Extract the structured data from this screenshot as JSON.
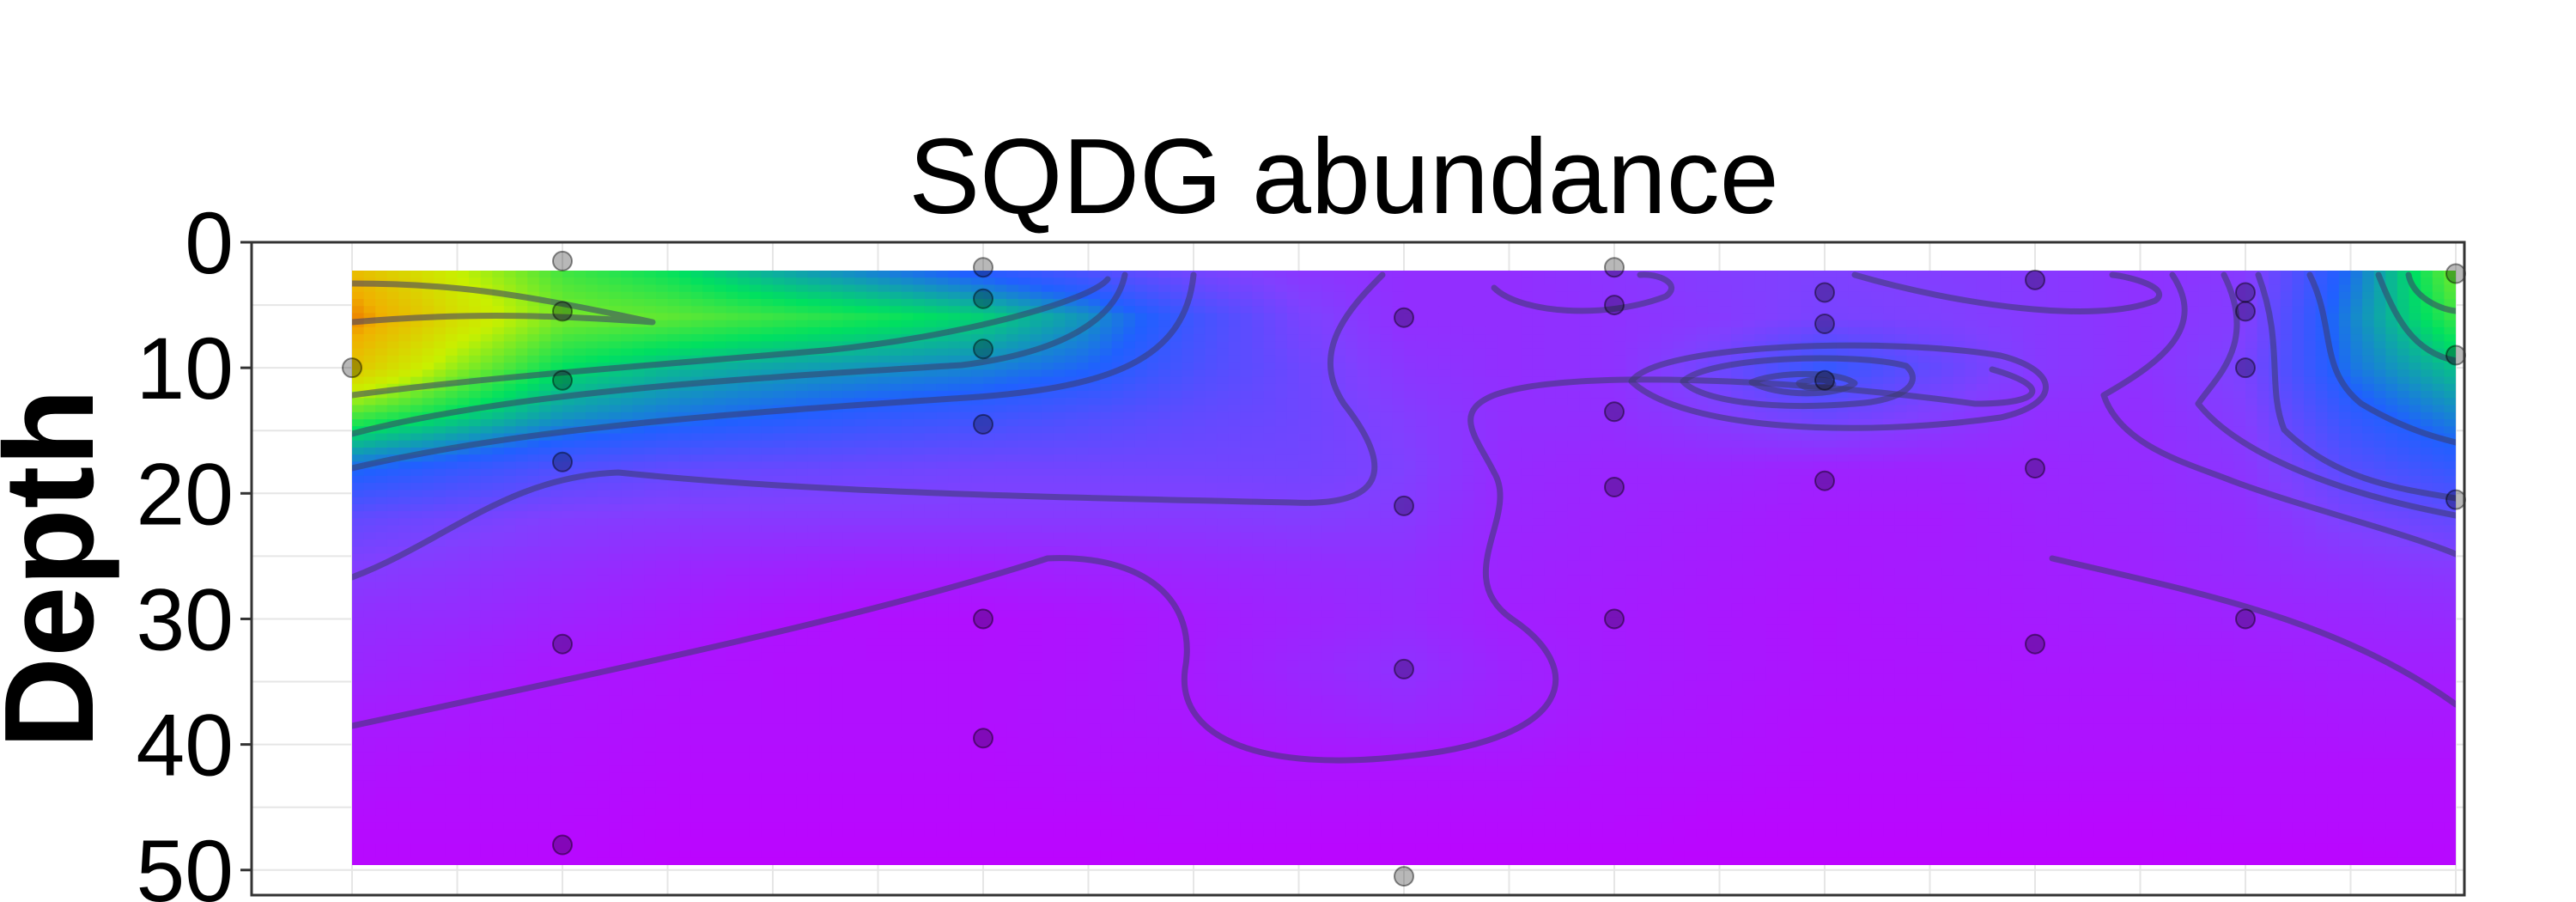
{
  "chart_data": {
    "type": "heatmap",
    "title": "SQDG abundance",
    "xlabel": "",
    "ylabel": "Depth",
    "y_reversed": true,
    "ylim": [
      0,
      52
    ],
    "y_ticks": [
      "0",
      "10",
      "20",
      "30",
      "40",
      "50"
    ],
    "x_tick_labels_shown": false,
    "grid": true,
    "legend": "none",
    "colormap": [
      "#c000ff",
      "#8040ff",
      "#2060ff",
      "#00e060",
      "#c8f000",
      "#f0b000",
      "#e00000"
    ],
    "x_positions": [
      0,
      1,
      3,
      5,
      6,
      7,
      8,
      9,
      10
    ],
    "grid_x": [
      0,
      0.5,
      1,
      1.5,
      2,
      2.5,
      3,
      3.5,
      4,
      4.5,
      5,
      5.5,
      6,
      6.5,
      7,
      7.5,
      8,
      8.5,
      9,
      9.5,
      10
    ],
    "grid_depth": [
      2,
      6,
      10,
      14,
      18,
      22,
      26,
      30,
      34,
      38,
      42,
      46,
      50
    ],
    "z": [
      [
        0.8,
        0.66,
        0.55,
        0.5,
        0.42,
        0.36,
        0.3,
        0.24,
        0.18,
        0.14,
        0.12,
        0.12,
        0.14,
        0.16,
        0.17,
        0.16,
        0.15,
        0.13,
        0.15,
        0.35,
        0.6
      ],
      [
        0.88,
        0.72,
        0.6,
        0.58,
        0.55,
        0.52,
        0.48,
        0.4,
        0.28,
        0.18,
        0.12,
        0.12,
        0.13,
        0.15,
        0.18,
        0.17,
        0.15,
        0.13,
        0.16,
        0.38,
        0.55
      ],
      [
        0.78,
        0.62,
        0.5,
        0.45,
        0.42,
        0.4,
        0.38,
        0.34,
        0.26,
        0.2,
        0.14,
        0.12,
        0.13,
        0.2,
        0.3,
        0.22,
        0.15,
        0.13,
        0.18,
        0.36,
        0.46
      ],
      [
        0.55,
        0.48,
        0.4,
        0.36,
        0.33,
        0.3,
        0.28,
        0.25,
        0.22,
        0.2,
        0.16,
        0.12,
        0.12,
        0.16,
        0.2,
        0.16,
        0.12,
        0.12,
        0.16,
        0.3,
        0.38
      ],
      [
        0.35,
        0.3,
        0.25,
        0.22,
        0.21,
        0.2,
        0.19,
        0.19,
        0.19,
        0.19,
        0.17,
        0.11,
        0.1,
        0.1,
        0.09,
        0.09,
        0.1,
        0.11,
        0.14,
        0.24,
        0.3
      ],
      [
        0.22,
        0.19,
        0.16,
        0.15,
        0.15,
        0.15,
        0.15,
        0.15,
        0.15,
        0.16,
        0.15,
        0.1,
        0.09,
        0.08,
        0.07,
        0.07,
        0.09,
        0.1,
        0.12,
        0.18,
        0.22
      ],
      [
        0.16,
        0.14,
        0.12,
        0.1,
        0.09,
        0.08,
        0.08,
        0.09,
        0.1,
        0.11,
        0.12,
        0.09,
        0.08,
        0.07,
        0.06,
        0.07,
        0.08,
        0.09,
        0.11,
        0.13,
        0.15
      ],
      [
        0.12,
        0.11,
        0.09,
        0.07,
        0.05,
        0.04,
        0.04,
        0.05,
        0.07,
        0.09,
        0.11,
        0.08,
        0.07,
        0.06,
        0.05,
        0.06,
        0.07,
        0.08,
        0.09,
        0.1,
        0.11
      ],
      [
        0.1,
        0.08,
        0.06,
        0.05,
        0.04,
        0.04,
        0.04,
        0.05,
        0.07,
        0.1,
        0.13,
        0.09,
        0.07,
        0.06,
        0.05,
        0.05,
        0.06,
        0.06,
        0.07,
        0.08,
        0.08
      ],
      [
        0.07,
        0.06,
        0.05,
        0.04,
        0.04,
        0.04,
        0.04,
        0.05,
        0.06,
        0.08,
        0.1,
        0.08,
        0.06,
        0.05,
        0.04,
        0.04,
        0.05,
        0.05,
        0.05,
        0.06,
        0.06
      ],
      [
        0.05,
        0.04,
        0.04,
        0.03,
        0.03,
        0.03,
        0.03,
        0.04,
        0.04,
        0.05,
        0.05,
        0.05,
        0.04,
        0.04,
        0.03,
        0.03,
        0.04,
        0.04,
        0.04,
        0.04,
        0.04
      ],
      [
        0.03,
        0.03,
        0.03,
        0.02,
        0.02,
        0.02,
        0.02,
        0.02,
        0.03,
        0.03,
        0.03,
        0.03,
        0.03,
        0.02,
        0.02,
        0.02,
        0.02,
        0.02,
        0.03,
        0.03,
        0.03
      ],
      [
        0.02,
        0.02,
        0.02,
        0.01,
        0.01,
        0.01,
        0.01,
        0.01,
        0.01,
        0.01,
        0.01,
        0.01,
        0.01,
        0.01,
        0.01,
        0.01,
        0.01,
        0.01,
        0.01,
        0.01,
        0.02
      ]
    ],
    "samples": [
      {
        "x": 0,
        "depth": 10
      },
      {
        "x": 1,
        "depth": 1.5
      },
      {
        "x": 1,
        "depth": 5.5
      },
      {
        "x": 1,
        "depth": 11
      },
      {
        "x": 1,
        "depth": 17.5
      },
      {
        "x": 1,
        "depth": 32
      },
      {
        "x": 1,
        "depth": 48
      },
      {
        "x": 3,
        "depth": 2
      },
      {
        "x": 3,
        "depth": 4.5
      },
      {
        "x": 3,
        "depth": 8.5
      },
      {
        "x": 3,
        "depth": 14.5
      },
      {
        "x": 3,
        "depth": 30
      },
      {
        "x": 3,
        "depth": 39.5
      },
      {
        "x": 5,
        "depth": 6
      },
      {
        "x": 5,
        "depth": 21
      },
      {
        "x": 5,
        "depth": 34
      },
      {
        "x": 5,
        "depth": 50.5
      },
      {
        "x": 6,
        "depth": 2
      },
      {
        "x": 6,
        "depth": 5
      },
      {
        "x": 6,
        "depth": 13.5
      },
      {
        "x": 6,
        "depth": 19.5
      },
      {
        "x": 6,
        "depth": 30
      },
      {
        "x": 7,
        "depth": 4
      },
      {
        "x": 7,
        "depth": 6.5
      },
      {
        "x": 7,
        "depth": 11
      },
      {
        "x": 7,
        "depth": 19
      },
      {
        "x": 8,
        "depth": 3
      },
      {
        "x": 8,
        "depth": 18
      },
      {
        "x": 8,
        "depth": 32
      },
      {
        "x": 9,
        "depth": 4
      },
      {
        "x": 9,
        "depth": 5.5
      },
      {
        "x": 9,
        "depth": 10
      },
      {
        "x": 9,
        "depth": 30
      },
      {
        "x": 10,
        "depth": 2.5
      },
      {
        "x": 10,
        "depth": 9
      },
      {
        "x": 10,
        "depth": 20.5
      }
    ]
  }
}
